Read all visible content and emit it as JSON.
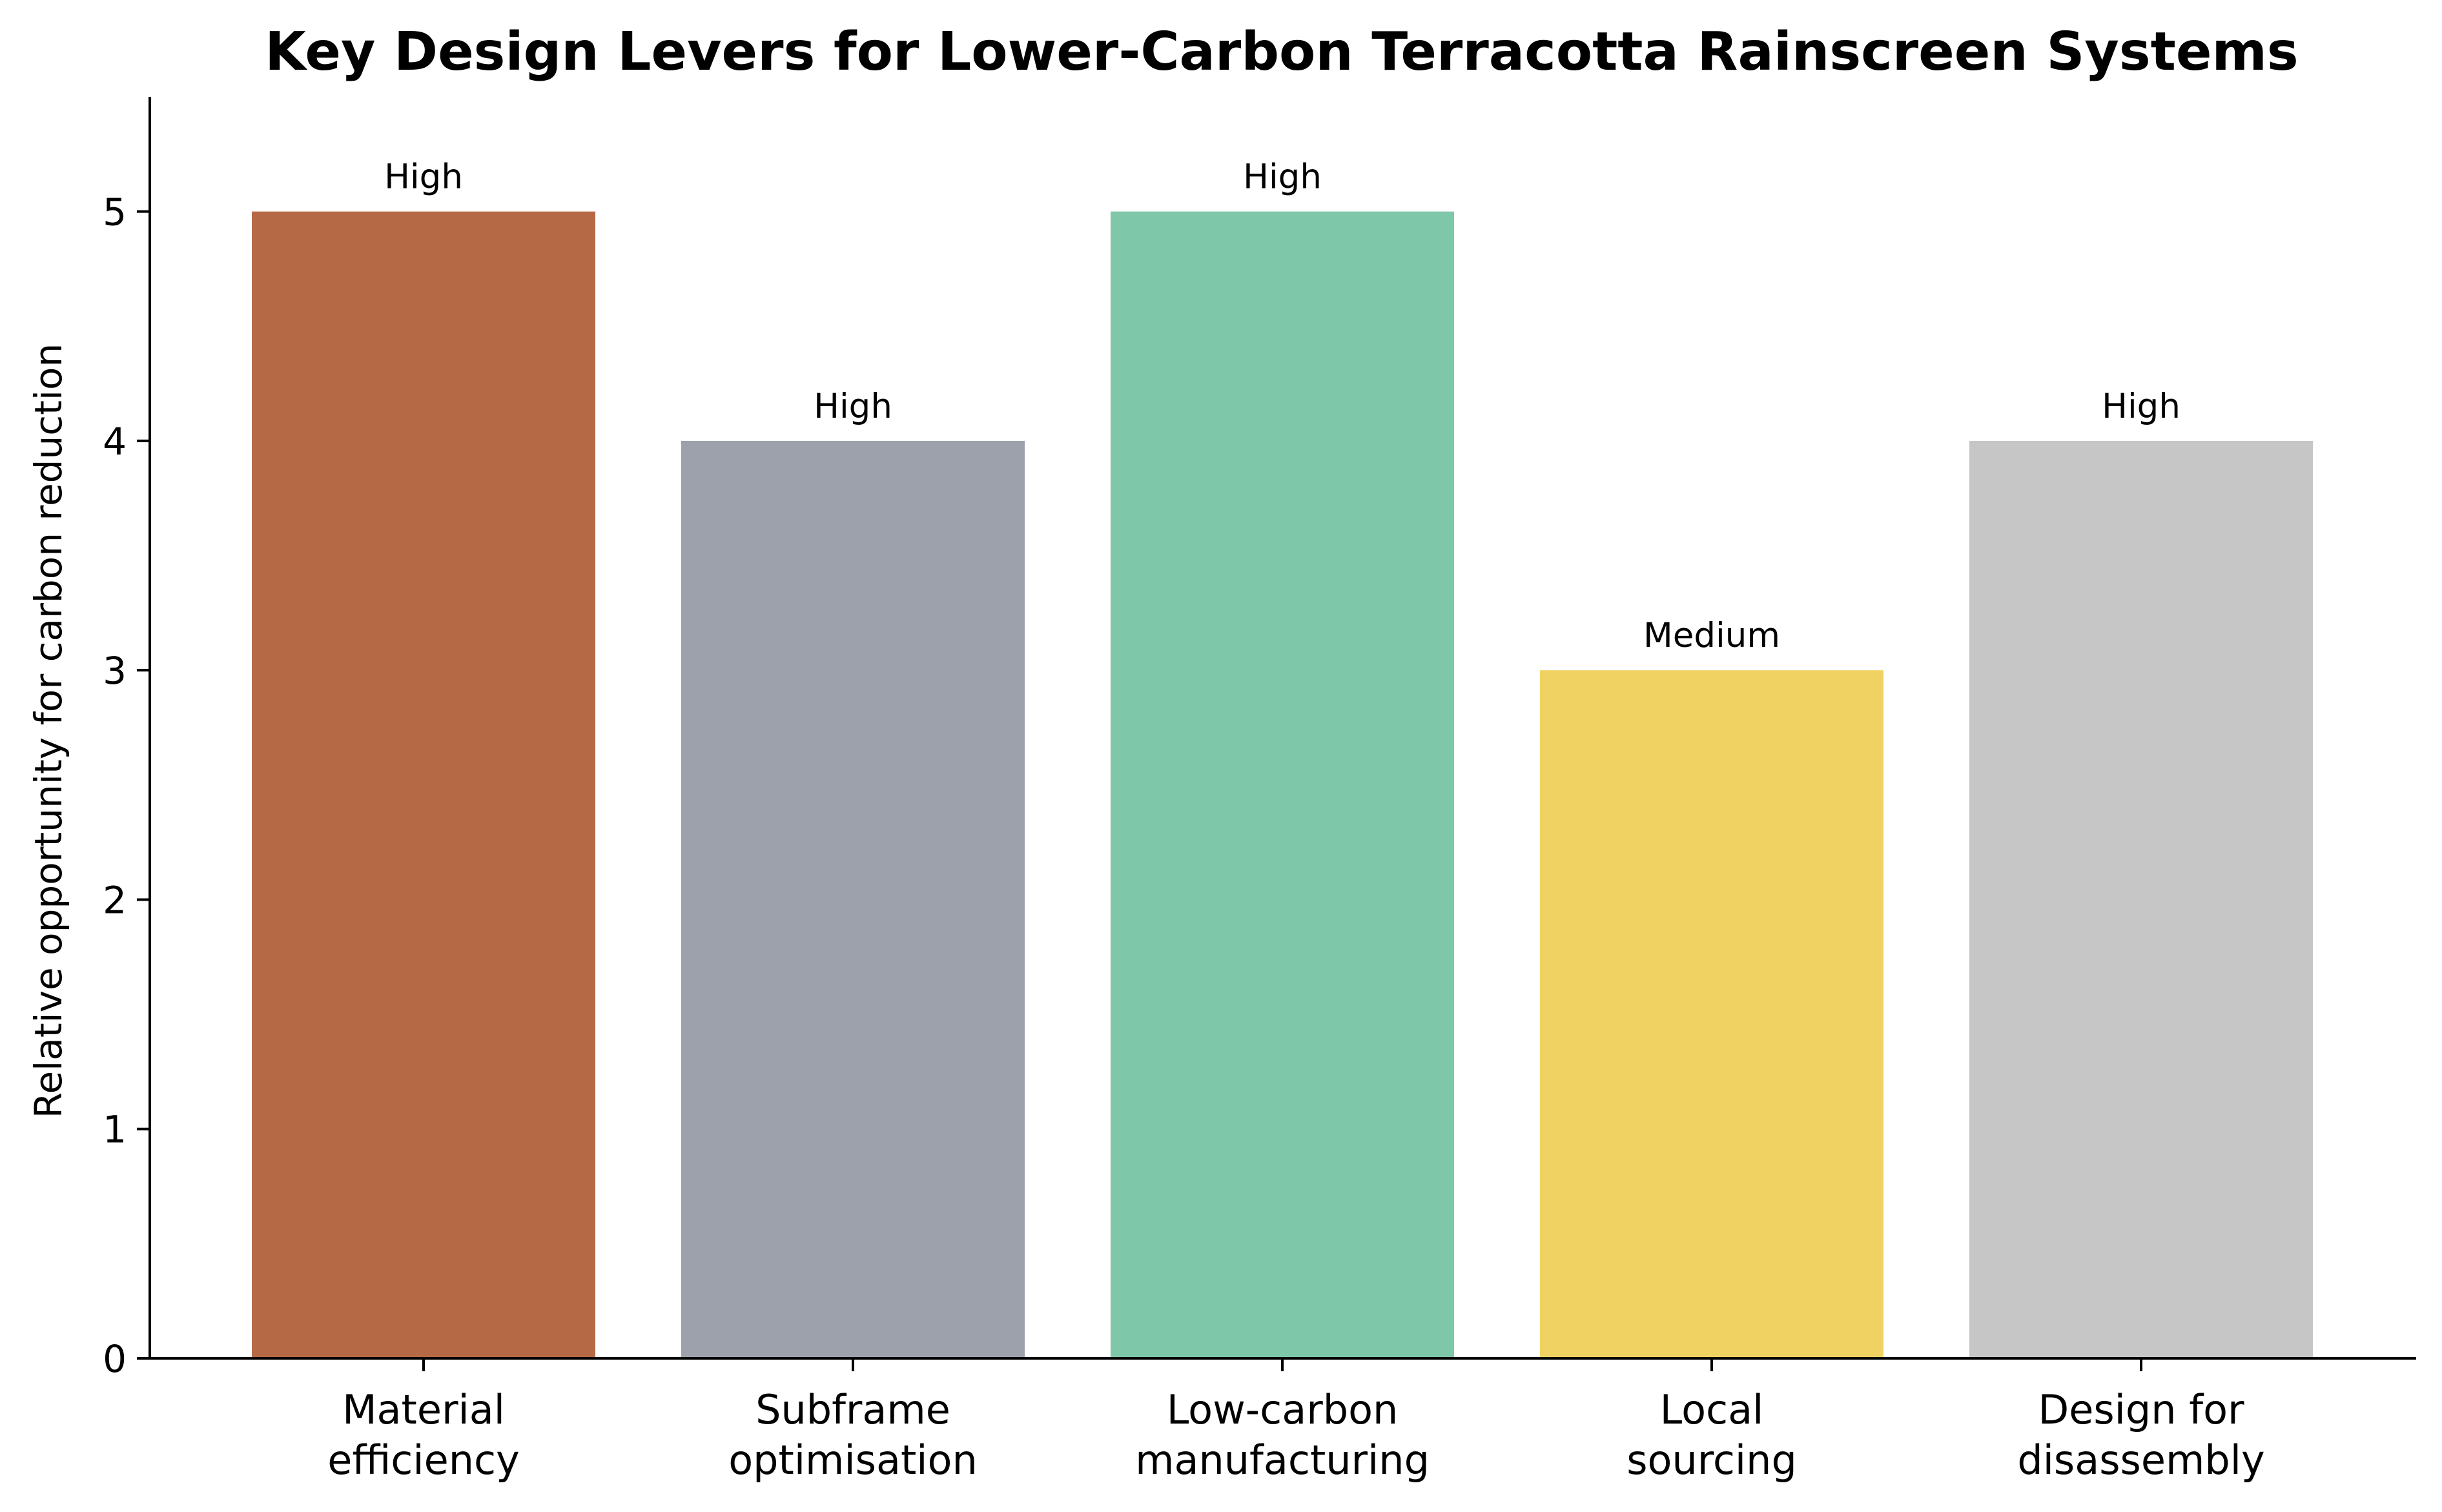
{
  "chart_data": {
    "type": "bar",
    "title": "Key Design Levers for Lower-Carbon Terracotta Rainscreen Systems",
    "xlabel": "",
    "ylabel": "Relative opportunity for carbon reduction",
    "ylim": [
      0,
      5.5
    ],
    "yticks": [
      "0",
      "1",
      "2",
      "3",
      "4",
      "5"
    ],
    "grid": false,
    "categories": [
      [
        "Material",
        "efficiency"
      ],
      [
        "Subframe",
        "optimisation"
      ],
      [
        "Low-carbon",
        "manufacturing"
      ],
      [
        "Local",
        "sourcing"
      ],
      [
        "Design for",
        "disassembly"
      ]
    ],
    "values": [
      5,
      4,
      5,
      3,
      4
    ],
    "data_labels": [
      "High",
      "High",
      "High",
      "Medium",
      "High"
    ],
    "colors": [
      "#b56a45",
      "#9ca1ac",
      "#7fc7a9",
      "#f0d262",
      "#c6c6c6"
    ]
  }
}
